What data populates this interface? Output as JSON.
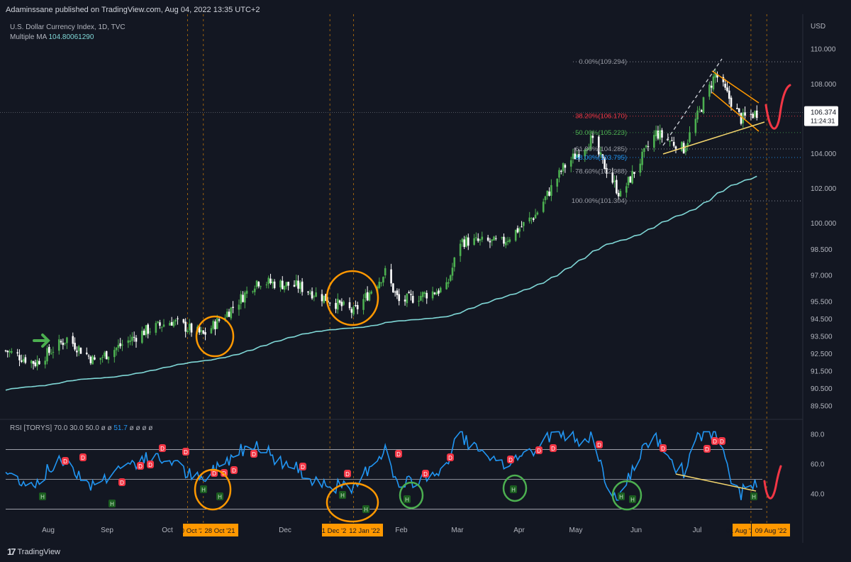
{
  "header": {
    "published": "Adaminssane published on TradingView.com, Aug 04, 2022 13:35 UTC+2"
  },
  "symbol": {
    "name": "U.S. Dollar Currency Index, 1D, TVC",
    "ma_label": "Multiple MA",
    "ma_value": "104.80061290"
  },
  "rsi_label": {
    "name": "RSI [TORYS]",
    "params": "70.0 30.0 50.0 ø ø",
    "value": "51.7",
    "tail": "ø ø ø ø"
  },
  "footer": {
    "brand": "TradingView"
  },
  "colors": {
    "bg": "#131722",
    "up": "#4caf50",
    "down": "#ffffff",
    "ma": "#7fd7d6",
    "rsi": "#2196f3",
    "annot": "#ff9800",
    "green_annot": "#4caf50",
    "red_projection": "#f23645"
  },
  "chart_data": [
    {
      "type": "candlestick",
      "title": "U.S. Dollar Currency Index, 1D, TVC",
      "currency_label": "USD",
      "y_ticks": [
        89.5,
        90.5,
        91.5,
        92.5,
        93.5,
        94.5,
        95.5,
        97.0,
        98.5,
        100.0,
        102.0,
        104.0,
        106.0,
        108.0,
        110.0
      ],
      "y_tick_labels": [
        "89.500",
        "90.500",
        "91.500",
        "92.500",
        "93.500",
        "94.500",
        "95.500",
        "97.000",
        "98.500",
        "100.000",
        "102.000",
        "104.000",
        "106.000",
        "108.000",
        "110.000"
      ],
      "x_tick_labels": [
        "Aug",
        "Sep",
        "Oct",
        "Dec",
        "Feb",
        "Mar",
        "Apr",
        "May",
        "Jun",
        "Jul"
      ],
      "price_trend": [
        {
          "date": "2021-07-20",
          "close": 92.7
        },
        {
          "date": "2021-08-04",
          "close": 92.0
        },
        {
          "date": "2021-08-20",
          "close": 93.4
        },
        {
          "date": "2021-09-03",
          "close": 92.1
        },
        {
          "date": "2021-09-28",
          "close": 93.8
        },
        {
          "date": "2021-10-12",
          "close": 94.4
        },
        {
          "date": "2021-10-28",
          "close": 93.6
        },
        {
          "date": "2021-11-12",
          "close": 95.2
        },
        {
          "date": "2021-11-24",
          "close": 96.7
        },
        {
          "date": "2021-12-15",
          "close": 96.4
        },
        {
          "date": "2021-12-31",
          "close": 95.6
        },
        {
          "date": "2022-01-12",
          "close": 94.9
        },
        {
          "date": "2022-01-28",
          "close": 97.2
        },
        {
          "date": "2022-02-04",
          "close": 95.5
        },
        {
          "date": "2022-02-28",
          "close": 96.3
        },
        {
          "date": "2022-03-07",
          "close": 99.0
        },
        {
          "date": "2022-03-28",
          "close": 98.9
        },
        {
          "date": "2022-04-14",
          "close": 100.5
        },
        {
          "date": "2022-04-28",
          "close": 103.2
        },
        {
          "date": "2022-05-12",
          "close": 104.8
        },
        {
          "date": "2022-05-27",
          "close": 101.6
        },
        {
          "date": "2022-06-14",
          "close": 105.2
        },
        {
          "date": "2022-06-28",
          "close": 104.3
        },
        {
          "date": "2022-07-14",
          "close": 108.6
        },
        {
          "date": "2022-07-27",
          "close": 106.0
        },
        {
          "date": "2022-08-04",
          "close": 106.374
        }
      ],
      "moving_average": {
        "name": "Multiple MA",
        "last_value": 104.8006129
      },
      "last_price": {
        "value": "106.374",
        "countdown": "11:24:31"
      },
      "fibonacci": [
        {
          "label": "0.00%(109.294)",
          "price": 109.294
        },
        {
          "label": "38.20%(106.170)",
          "price": 106.17
        },
        {
          "label": "50.00%(105.223)",
          "price": 105.223
        },
        {
          "label": "61.80%(104.285)",
          "price": 104.285
        },
        {
          "label": "68.00%(103.795)",
          "price": 103.795
        },
        {
          "label": "78.60%(102.988)",
          "price": 102.988
        },
        {
          "label": "100.00%(101.304)",
          "price": 101.304
        }
      ],
      "date_markers": [
        "20 Oct '21",
        "28 Oct '21",
        "31 Dec '21",
        "12 Jan '22",
        "01 Aug '22",
        "09 Aug '22"
      ]
    },
    {
      "type": "line",
      "title": "RSI [TORYS]",
      "y_ticks": [
        40,
        60,
        80
      ],
      "y_tick_labels": [
        "40.0",
        "60.0",
        "80.0"
      ],
      "levels": [
        70,
        50,
        30
      ],
      "last_value": 51.7,
      "marker_letters": {
        "high": "D",
        "low": "H"
      }
    }
  ]
}
